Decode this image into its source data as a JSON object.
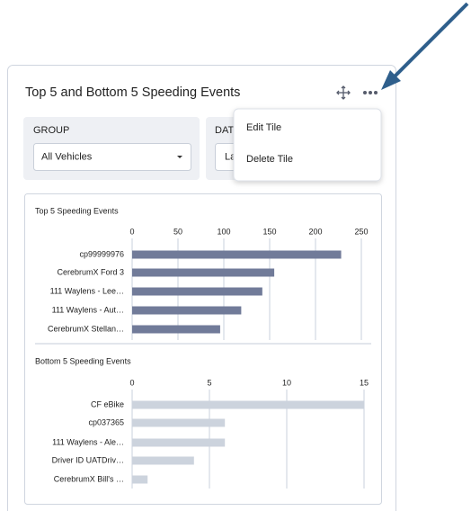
{
  "tile": {
    "title": "Top 5 and Bottom 5 Speeding Events"
  },
  "filters": {
    "group_label": "GROUP",
    "group_value": "All Vehicles",
    "date_label": "DAT",
    "date_value": "La"
  },
  "menu": {
    "items": [
      "Edit Tile",
      "Delete Tile"
    ]
  },
  "charts": [
    {
      "type": "bar",
      "title": "Top 5 Speeding Events",
      "orientation": "horizontal",
      "color": "#717b99",
      "categories": [
        "cp99999976",
        "CerebrumX Ford 3",
        "111 Waylens - Lee…",
        "111 Waylens - Aut…",
        "CerebrumX Stellan…"
      ],
      "values": [
        228,
        155,
        142,
        119,
        96
      ],
      "xlim": [
        0,
        250
      ],
      "xticks": [
        0,
        50,
        100,
        150,
        200,
        250
      ],
      "grid": true
    },
    {
      "type": "bar",
      "title": "Bottom 5 Speeding Events",
      "orientation": "horizontal",
      "color": "#ccd3dd",
      "categories": [
        "CF eBike",
        "cp037365",
        "111 Waylens - Ale…",
        "Driver ID UATDriv…",
        "CerebrumX Bill's …"
      ],
      "values": [
        15,
        6,
        6,
        4,
        1
      ],
      "xlim": [
        0,
        15
      ],
      "xticks": [
        0,
        5,
        10,
        15
      ],
      "grid": true
    }
  ]
}
